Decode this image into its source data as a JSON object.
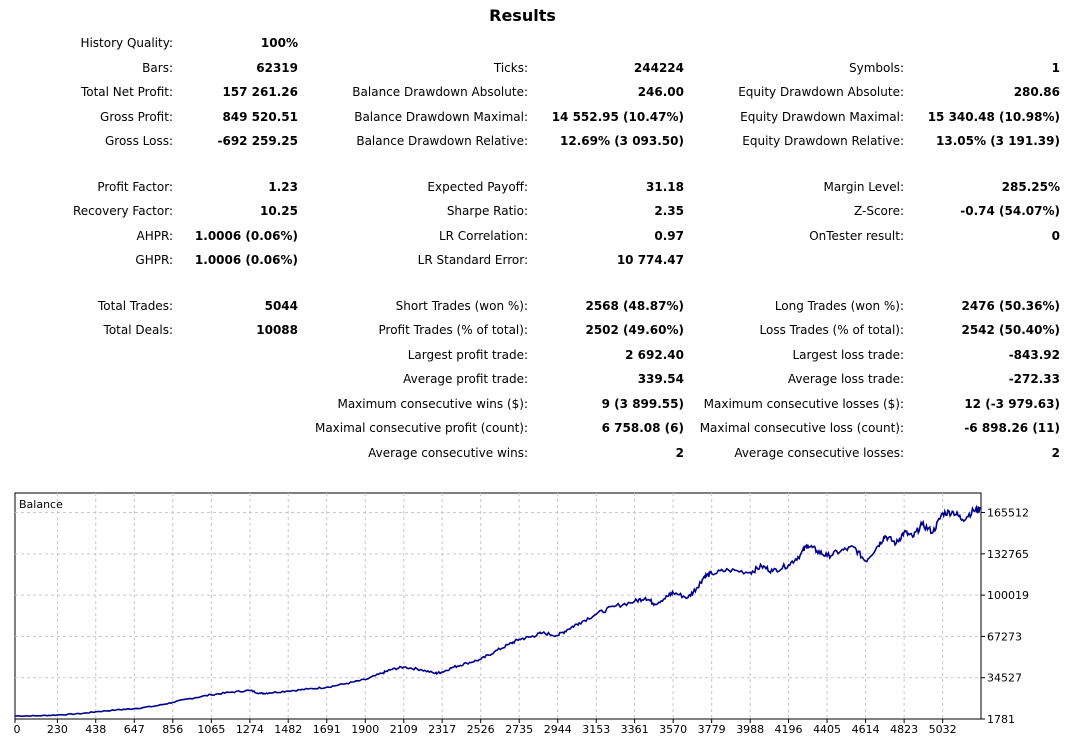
{
  "title": "Results",
  "stats": [
    [
      {
        "label": "History Quality:",
        "value": "100%"
      },
      null,
      null
    ],
    [
      {
        "label": "Bars:",
        "value": "62319"
      },
      {
        "label": "Ticks:",
        "value": "244224"
      },
      {
        "label": "Symbols:",
        "value": "1"
      }
    ],
    [
      {
        "label": "Total Net Profit:",
        "value": "157 261.26"
      },
      {
        "label": "Balance Drawdown Absolute:",
        "value": "246.00"
      },
      {
        "label": "Equity Drawdown Absolute:",
        "value": "280.86"
      }
    ],
    [
      {
        "label": "Gross Profit:",
        "value": "849 520.51"
      },
      {
        "label": "Balance Drawdown Maximal:",
        "value": "14 552.95 (10.47%)"
      },
      {
        "label": "Equity Drawdown Maximal:",
        "value": "15 340.48 (10.98%)"
      }
    ],
    [
      {
        "label": "Gross Loss:",
        "value": "-692 259.25"
      },
      {
        "label": "Balance Drawdown Relative:",
        "value": "12.69% (3 093.50)"
      },
      {
        "label": "Equity Drawdown Relative:",
        "value": "13.05% (3 191.39)"
      }
    ],
    [
      {
        "label": "Profit Factor:",
        "value": "1.23"
      },
      {
        "label": "Expected Payoff:",
        "value": "31.18"
      },
      {
        "label": "Margin Level:",
        "value": "285.25%"
      }
    ],
    [
      {
        "label": "Recovery Factor:",
        "value": "10.25"
      },
      {
        "label": "Sharpe Ratio:",
        "value": "2.35"
      },
      {
        "label": "Z-Score:",
        "value": "-0.74 (54.07%)"
      }
    ],
    [
      {
        "label": "AHPR:",
        "value": "1.0006 (0.06%)"
      },
      {
        "label": "LR Correlation:",
        "value": "0.97"
      },
      {
        "label": "OnTester result:",
        "value": "0"
      }
    ],
    [
      {
        "label": "GHPR:",
        "value": "1.0006 (0.06%)"
      },
      {
        "label": "LR Standard Error:",
        "value": "10 774.47"
      },
      null
    ],
    [
      {
        "label": "Total Trades:",
        "value": "5044"
      },
      {
        "label": "Short Trades (won %):",
        "value": "2568 (48.87%)"
      },
      {
        "label": "Long Trades (won %):",
        "value": "2476 (50.36%)"
      }
    ],
    [
      {
        "label": "Total Deals:",
        "value": "10088"
      },
      {
        "label": "Profit Trades (% of total):",
        "value": "2502 (49.60%)"
      },
      {
        "label": "Loss Trades (% of total):",
        "value": "2542 (50.40%)"
      }
    ],
    [
      null,
      {
        "label": "Largest profit trade:",
        "value": "2 692.40"
      },
      {
        "label": "Largest loss trade:",
        "value": "-843.92"
      }
    ],
    [
      null,
      {
        "label": "Average profit trade:",
        "value": "339.54"
      },
      {
        "label": "Average loss trade:",
        "value": "-272.33"
      }
    ],
    [
      null,
      {
        "label": "Maximum consecutive wins ($):",
        "value": "9 (3 899.55)"
      },
      {
        "label": "Maximum consecutive losses ($):",
        "value": "12 (-3 979.63)"
      }
    ],
    [
      null,
      {
        "label": "Maximal consecutive profit (count):",
        "value": "6 758.08 (6)"
      },
      {
        "label": "Maximal consecutive loss (count):",
        "value": "-6 898.26 (11)"
      }
    ],
    [
      null,
      {
        "label": "Average consecutive wins:",
        "value": "2"
      },
      {
        "label": "Average consecutive losses:",
        "value": "2"
      }
    ]
  ],
  "chart_data": {
    "type": "line",
    "title": "Balance",
    "xlabel": "",
    "ylabel": "",
    "xlim": [
      0,
      5240
    ],
    "ylim": [
      1781,
      181000
    ],
    "x_ticks": [
      "0",
      "230",
      "438",
      "647",
      "856",
      "1065",
      "1274",
      "1482",
      "1691",
      "1900",
      "2109",
      "2317",
      "2526",
      "2735",
      "2944",
      "3153",
      "3361",
      "3570",
      "3779",
      "3988",
      "4196",
      "4405",
      "4614",
      "4823",
      "5032"
    ],
    "y_ticks": [
      "165512",
      "132765",
      "100019",
      "67273",
      "34527",
      "1781"
    ],
    "grid": true,
    "line_color": "#00008b",
    "series": [
      {
        "name": "Balance",
        "x": [
          0,
          120,
          230,
          350,
          438,
          550,
          647,
          760,
          856,
          950,
          1065,
          1170,
          1274,
          1330,
          1380,
          1482,
          1590,
          1691,
          1800,
          1900,
          1990,
          2040,
          2109,
          2200,
          2280,
          2317,
          2380,
          2450,
          2526,
          2600,
          2680,
          2735,
          2800,
          2860,
          2944,
          3000,
          3060,
          3153,
          3250,
          3361,
          3420,
          3470,
          3540,
          3570,
          3650,
          3700,
          3740,
          3779,
          3870,
          3988,
          4050,
          4110,
          4196,
          4260,
          4300,
          4350,
          4405,
          4480,
          4550,
          4614,
          4680,
          4720,
          4780,
          4823,
          4870,
          4920,
          4980,
          5032,
          5090,
          5140,
          5200,
          5236
        ],
        "values": [
          4200,
          4300,
          5000,
          6000,
          7500,
          9000,
          10000,
          12000,
          15000,
          18000,
          21000,
          23000,
          24500,
          22000,
          22500,
          24000,
          25500,
          27000,
          30000,
          33000,
          38000,
          41000,
          43000,
          41000,
          38000,
          39000,
          43000,
          46000,
          49000,
          55000,
          61000,
          65000,
          67000,
          70000,
          68000,
          73000,
          78000,
          85000,
          91000,
          95000,
          98000,
          93000,
          99000,
          102000,
          98000,
          106000,
          115000,
          117000,
          120000,
          118000,
          123000,
          119000,
          124000,
          132000,
          140000,
          135000,
          131000,
          135000,
          138000,
          127000,
          139000,
          147000,
          141000,
          150000,
          146000,
          156000,
          150000,
          165000,
          166000,
          160000,
          167000,
          168000
        ]
      }
    ]
  }
}
